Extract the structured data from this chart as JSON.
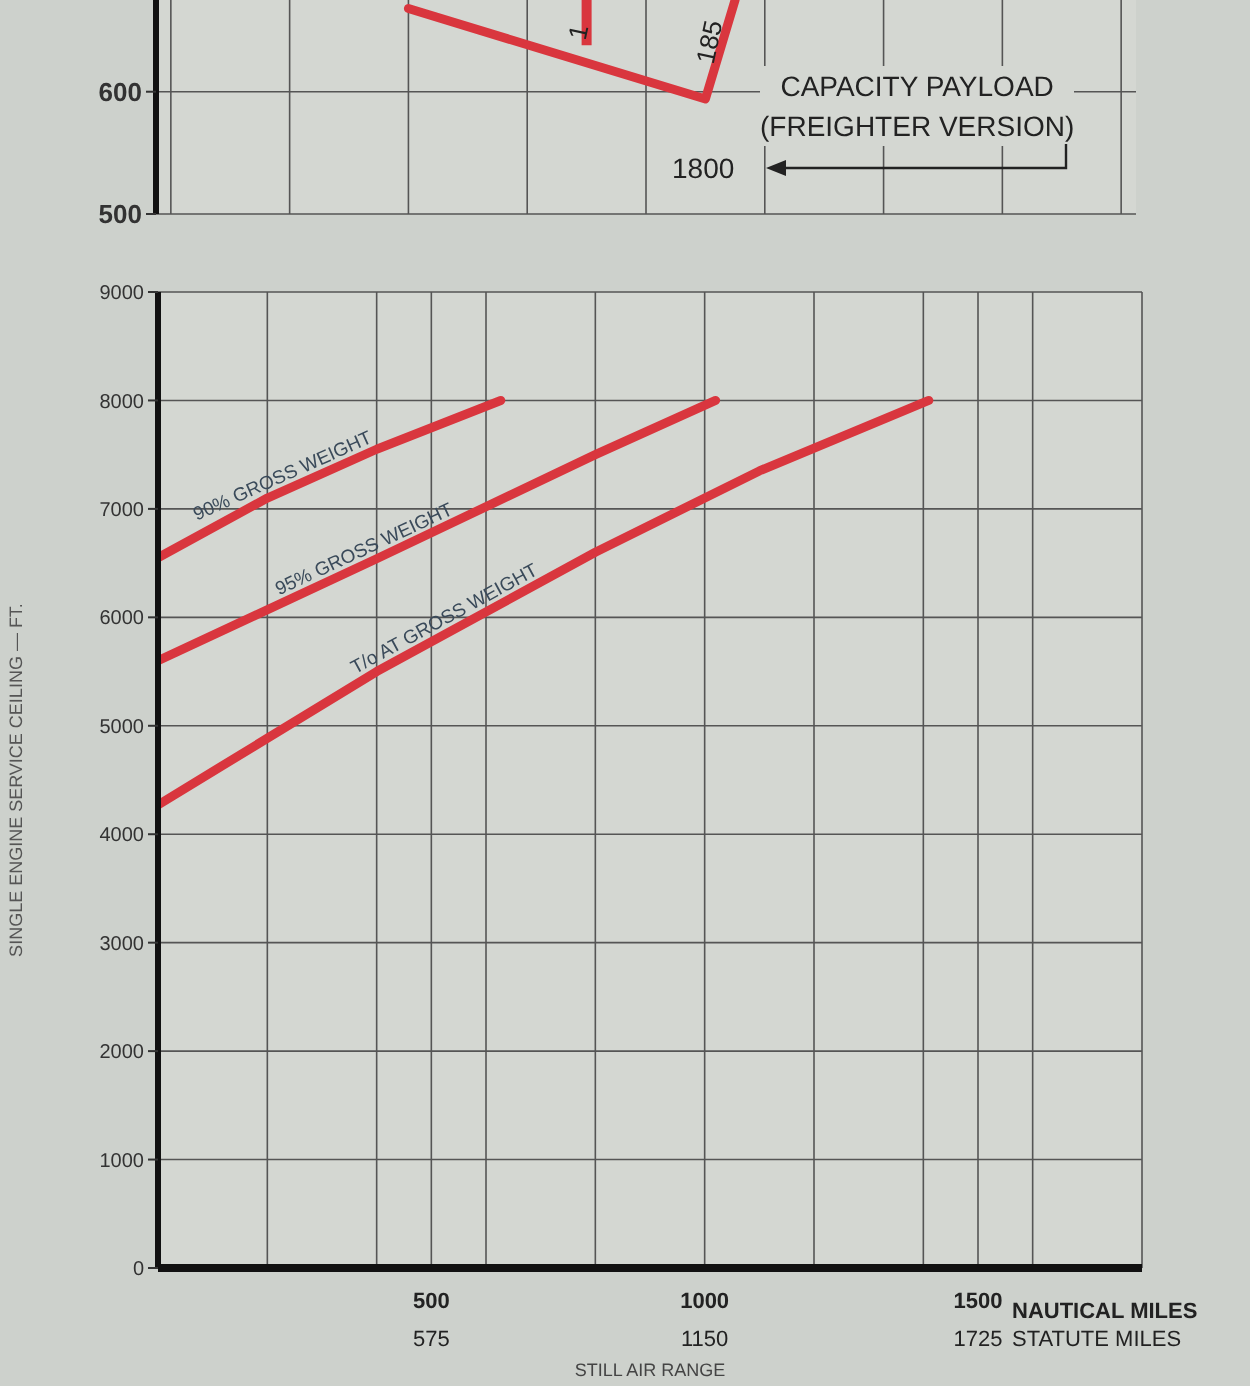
{
  "chart_data": [
    {
      "type": "line",
      "ylim": [
        500,
        675
      ],
      "yticks": [
        500,
        600
      ],
      "categories": [
        null,
        null,
        null,
        null,
        null,
        null,
        null,
        null,
        null,
        null,
        null,
        null,
        null,
        null,
        null,
        null,
        null,
        null,
        null,
        null,
        null,
        null,
        null,
        null,
        null,
        null,
        null,
        null,
        null,
        null,
        null,
        null,
        null
      ],
      "tick_labels": "y",
      "grid": true,
      "marker": "none",
      "line_style": "solid",
      "series": [
        {
          "color": "#d9363e",
          "values": [
            null,
            null,
            null,
            null,
            null,
            null,
            null,
            null,
            668,
            null,
            null,
            null,
            null,
            null,
            null,
            null,
            null,
            null,
            594,
            675,
            null,
            null,
            null,
            null,
            null,
            null,
            null,
            null,
            null,
            null,
            null,
            null,
            null
          ]
        },
        {
          "type": "bar",
          "color": "#d9363e",
          "base": [
            null,
            null,
            null,
            null,
            null,
            null,
            null,
            null,
            null,
            null,
            null,
            null,
            null,
            null,
            638,
            null,
            null,
            null,
            null,
            null,
            null,
            null,
            null,
            null,
            null,
            null,
            null,
            null,
            null,
            null,
            null,
            null,
            null
          ],
          "values": [
            null,
            null,
            null,
            null,
            null,
            null,
            null,
            null,
            null,
            null,
            null,
            null,
            null,
            null,
            37,
            null,
            null,
            null,
            null,
            null,
            null,
            null,
            null,
            null,
            null,
            null,
            null,
            null,
            null,
            null,
            null,
            null,
            null
          ]
        }
      ],
      "annotations": [
        "CAPACITY PAYLOAD",
        "(FREIGHTER VERSION)",
        "1800",
        "185",
        "1"
      ]
    },
    {
      "type": "line",
      "xlabel": "STILL AIR RANGE",
      "ylabel": "SINGLE ENGINE SERVICE CEILING — FT.",
      "xlim": [
        0,
        1800
      ],
      "ylim": [
        0,
        9000
      ],
      "xticks": [
        {
          "value": 200,
          "label": null
        },
        {
          "value": 400,
          "label": null
        },
        500,
        {
          "value": 600,
          "label": null
        },
        {
          "value": 800,
          "label": null
        },
        1000,
        {
          "value": 1200,
          "label": null
        },
        {
          "value": 1400,
          "label": null
        },
        1500,
        {
          "value": 1600,
          "label": null
        },
        {
          "value": 1800,
          "label": null
        }
      ],
      "yticks": [
        0,
        1000,
        2000,
        3000,
        4000,
        5000,
        6000,
        7000,
        8000,
        9000
      ],
      "grid": true,
      "marker": "none",
      "line_style": "solid",
      "series": [
        {
          "name": "90% GROSS WEIGHT",
          "color": "#d9363e",
          "x": [
            0,
            200,
            400,
            627
          ],
          "values": [
            6550,
            7100,
            7550,
            8000
          ]
        },
        {
          "name": "95% GROSS WEIGHT",
          "color": "#d9363e",
          "x": [
            0,
            400,
            800,
            1020
          ],
          "values": [
            5600,
            6540,
            7500,
            8000
          ]
        },
        {
          "name": "T/o AT GROSS WEIGHT",
          "color": "#d9363e",
          "x": [
            0,
            400,
            800,
            1100,
            1410
          ],
          "values": [
            4270,
            5500,
            6600,
            7350,
            8000
          ]
        }
      ],
      "annotations": [
        "NAUTICAL MILES",
        "575",
        "1150",
        "1725",
        "STATUTE MILES"
      ]
    }
  ]
}
